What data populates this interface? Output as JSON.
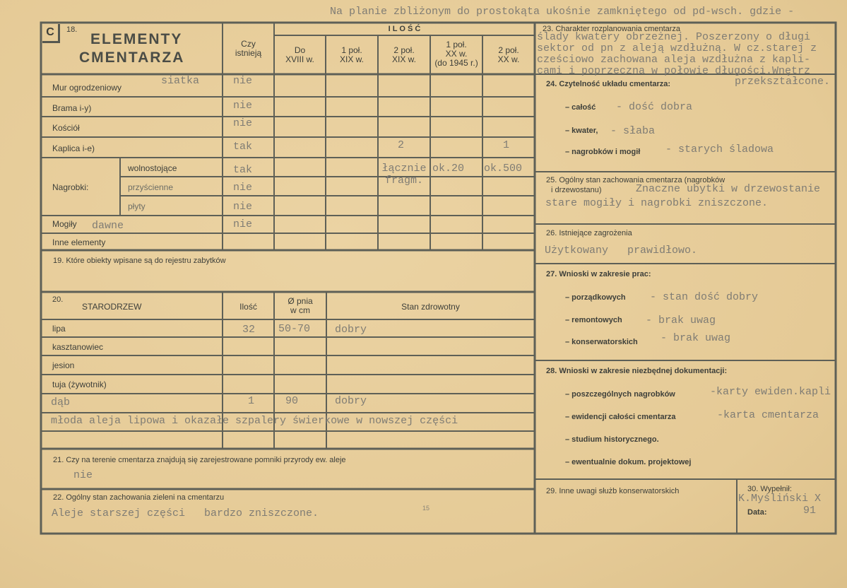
{
  "header_note": "Na planie zbliżonym do prostokąta ukośnie zamkniętego od pd-wsch. gdzie -",
  "s18": {
    "letter": "C",
    "number": "18.",
    "title_line1": "ELEMENTY",
    "title_line2": "CMENTARZA",
    "col_exists": "Czy\nistnieją",
    "ilosc": "I L O Ś Ć",
    "periods": [
      "Do\nXVIII w.",
      "1 poł.\nXIX w.",
      "2 poł.\nXIX w.",
      "1 poł.\nXX w.\n(do 1945 r.)",
      "2 poł.\nXX w."
    ],
    "rows": [
      {
        "label": "Mur ogrodzeniowy",
        "note": "siatka",
        "exists": "nie"
      },
      {
        "label": "Brama i-y)",
        "exists": "nie"
      },
      {
        "label": "Kościół",
        "exists": "nie"
      },
      {
        "label": "Kaplica i-e)",
        "exists": "tak",
        "v_2pol_xix": "2",
        "v_2pol_xx": "1"
      },
      {
        "group": "Nagrobki:",
        "label": "wolnostojące",
        "exists": "tak",
        "v_2pol_xix": "łącznie\nfragm.",
        "v_1pol_xx": "ok.20",
        "v_2pol_xx": "ok.500"
      },
      {
        "label": "przyścienne",
        "exists": "nie"
      },
      {
        "label": "płyty",
        "exists": "nie"
      },
      {
        "label": "Mogiły",
        "note": "dawne",
        "exists": "nie"
      },
      {
        "label": "Inne elementy"
      }
    ]
  },
  "s19": {
    "label": "19. Które obiekty wpisane są do rejestru zabytków"
  },
  "s20": {
    "number": "20.",
    "title": "STARODRZEW",
    "col_count": "Ilość",
    "col_diameter": "Ø pnia\nw cm",
    "col_health": "Stan zdrowotny",
    "rows": [
      {
        "species": "lipa",
        "count": "32",
        "diameter": "50-70",
        "health": "dobry"
      },
      {
        "species": "kasztanowiec"
      },
      {
        "species": "jesion"
      },
      {
        "species": "tuja (żywotnik)"
      },
      {
        "species": "dąb",
        "count": "1",
        "diameter": "90",
        "health": "dobry"
      }
    ],
    "note": "młoda aleja lipowa i okazałe szpalery świerkowe w nowszej części"
  },
  "s21": {
    "label": "21. Czy na terenie cmentarza znajdują się zarejestrowane pomniki przyrody ew. aleje",
    "value": "nie"
  },
  "s22": {
    "label": "22. Ogólny stan zachowania zieleni na cmentarzu",
    "value": "Aleje starszej części   bardzo zniszczone.",
    "mark": "15"
  },
  "s23": {
    "label": "23. Charakter rozplanowania cmentarza",
    "lines": [
      "ślady kwatery obrzeżnej. Poszerzony o długi",
      "sektor od pn z aleją wzdłużną. W cz.starej z",
      "cześciowo zachowana aleja wzdłużna z kapli-",
      "cami i poprzeczna w połowie długości.Wnętrz"
    ]
  },
  "s24": {
    "label": "24. Czytelność układu cmentarza:",
    "value": "przekształcone.",
    "items": [
      {
        "label": "– całość",
        "value": "- dość dobra"
      },
      {
        "label": "– kwater,",
        "value": "- słaba"
      },
      {
        "label": "– nagrobków i mogił",
        "value": "- starych śladowa"
      }
    ]
  },
  "s25": {
    "label_line1": "25. Ogólny stan zachowania cmentarza (nagrobków",
    "label_line2": "i drzewostanu)",
    "value_line1": "Znaczne ubytki w drzewostanie",
    "value_line2": "stare mogiły i nagrobki zniszczone."
  },
  "s26": {
    "label": "26. Istniejące zagrożenia",
    "value": "Użytkowany   prawidłowo."
  },
  "s27": {
    "label": "27. Wnioski w zakresie prac:",
    "items": [
      {
        "label": "– porządkowych",
        "value": "- stan dość dobry"
      },
      {
        "label": "– remontowych",
        "value": "- brak uwag"
      },
      {
        "label": "– konserwatorskich",
        "value": "- brak uwag"
      }
    ]
  },
  "s28": {
    "label": "28. Wnioski w zakresie niezbędnej dokumentacji:",
    "items": [
      {
        "label": "– poszczególnych nagrobków",
        "value": "-karty ewiden.kapli"
      },
      {
        "label": "– ewidencji całości cmentarza",
        "value": "-karta cmentarza"
      },
      {
        "label": "– studium historycznego."
      },
      {
        "label": "– ewentualnie dokum. projektowej"
      }
    ]
  },
  "s29": {
    "label": "29. Inne uwagi służb konserwatorskich"
  },
  "s30": {
    "label": "30. Wypełnił:",
    "value": "K.Myśliński X",
    "date_label": "Data:",
    "date_value": "91"
  }
}
